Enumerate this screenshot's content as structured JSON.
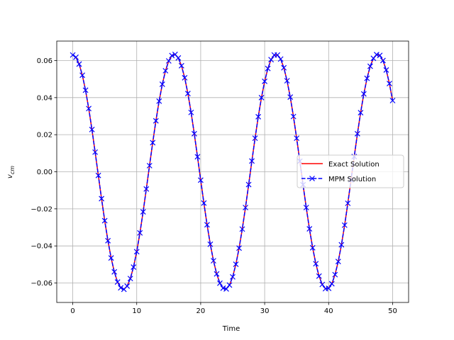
{
  "chart_data": {
    "type": "line",
    "title": "",
    "xlabel": "Time",
    "ylabel_main": "v",
    "ylabel_sub": "cm",
    "xlim": [
      -2.5,
      52.5
    ],
    "ylim": [
      -0.0705,
      0.0705
    ],
    "x_ticks": [
      0,
      10,
      20,
      30,
      40,
      50
    ],
    "x_tick_labels": [
      "0",
      "10",
      "20",
      "30",
      "40",
      "50"
    ],
    "y_ticks": [
      -0.06,
      -0.04,
      -0.02,
      0.0,
      0.02,
      0.04,
      0.06
    ],
    "y_tick_labels": [
      "−0.06",
      "−0.04",
      "−0.02",
      "0.00",
      "0.02",
      "0.04",
      "0.06"
    ],
    "grid": true,
    "legend_position": "center-right",
    "series": [
      {
        "name": "Exact Solution",
        "style": "solid",
        "marker": "none",
        "color": "#ff0000",
        "x": [
          0,
          0.5,
          1.0,
          1.5,
          2.0,
          2.5,
          3.0,
          3.5,
          4.0,
          4.5,
          5.0,
          5.5,
          6.0,
          6.5,
          7.0,
          7.5,
          8.0,
          8.5,
          9.0,
          9.5,
          10.0,
          10.5,
          11.0,
          11.5,
          12.0,
          12.5,
          13.0,
          13.5,
          14.0,
          14.5,
          15.0,
          15.5,
          16.0,
          16.5,
          17.0,
          17.5,
          18.0,
          18.5,
          19.0,
          19.5,
          20.0,
          20.5,
          21.0,
          21.5,
          22.0,
          22.5,
          23.0,
          23.5,
          24.0,
          24.5,
          25.0,
          25.5,
          26.0,
          26.5,
          27.0,
          27.5,
          28.0,
          28.5,
          29.0,
          29.5,
          30.0,
          30.5,
          31.0,
          31.5,
          32.0,
          32.5,
          33.0,
          33.5,
          34.0,
          34.5,
          35.0,
          35.5,
          36.0,
          36.5,
          37.0,
          37.5,
          38.0,
          38.5,
          39.0,
          39.5,
          40.0,
          40.5,
          41.0,
          41.5,
          42.0,
          42.5,
          43.0,
          43.5,
          44.0,
          44.5,
          45.0,
          45.5,
          46.0,
          46.5,
          47.0,
          47.5,
          48.0,
          48.5,
          49.0,
          49.5,
          50.0
        ],
        "y": [
          0.063,
          0.0618,
          0.0581,
          0.0521,
          0.044,
          0.0341,
          0.0228,
          0.0106,
          -0.002,
          -0.0145,
          -0.0264,
          -0.0372,
          -0.0465,
          -0.054,
          -0.0595,
          -0.0626,
          -0.0634,
          -0.0617,
          -0.0576,
          -0.0514,
          -0.0431,
          -0.033,
          -0.0216,
          -0.0093,
          0.0033,
          0.0157,
          0.0275,
          0.0381,
          0.0472,
          0.0545,
          0.0598,
          0.0627,
          0.0633,
          0.0614,
          0.0572,
          0.0507,
          0.0422,
          0.032,
          0.0205,
          0.0081,
          -0.0045,
          -0.0169,
          -0.0286,
          -0.0391,
          -0.048,
          -0.0551,
          -0.0601,
          -0.0628,
          -0.0632,
          -0.0611,
          -0.0567,
          -0.0499,
          -0.0412,
          -0.0309,
          -0.0193,
          -0.0069,
          0.0058,
          0.0181,
          0.0297,
          0.04,
          0.0488,
          0.0557,
          0.0605,
          0.063,
          0.063,
          0.0608,
          0.0561,
          0.0491,
          0.0403,
          0.0298,
          0.0181,
          0.0057,
          -0.007,
          -0.0193,
          -0.0308,
          -0.041,
          -0.0496,
          -0.0563,
          -0.0608,
          -0.0631,
          -0.0629,
          -0.0604,
          -0.0555,
          -0.0484,
          -0.0394,
          -0.0288,
          -0.017,
          -0.0044,
          0.0082,
          0.0205,
          0.0319,
          0.042,
          0.0504,
          0.0569,
          0.0612,
          0.0632,
          0.0628,
          0.06,
          0.0549,
          0.0476,
          0.0384
        ]
      },
      {
        "name": "MPM Solution",
        "style": "dashed",
        "marker": "x",
        "color": "#0000ff",
        "x": [
          0,
          0.5,
          1.0,
          1.5,
          2.0,
          2.5,
          3.0,
          3.5,
          4.0,
          4.5,
          5.0,
          5.5,
          6.0,
          6.5,
          7.0,
          7.5,
          8.0,
          8.5,
          9.0,
          9.5,
          10.0,
          10.5,
          11.0,
          11.5,
          12.0,
          12.5,
          13.0,
          13.5,
          14.0,
          14.5,
          15.0,
          15.5,
          16.0,
          16.5,
          17.0,
          17.5,
          18.0,
          18.5,
          19.0,
          19.5,
          20.0,
          20.5,
          21.0,
          21.5,
          22.0,
          22.5,
          23.0,
          23.5,
          24.0,
          24.5,
          25.0,
          25.5,
          26.0,
          26.5,
          27.0,
          27.5,
          28.0,
          28.5,
          29.0,
          29.5,
          30.0,
          30.5,
          31.0,
          31.5,
          32.0,
          32.5,
          33.0,
          33.5,
          34.0,
          34.5,
          35.0,
          35.5,
          36.0,
          36.5,
          37.0,
          37.5,
          38.0,
          38.5,
          39.0,
          39.5,
          40.0,
          40.5,
          41.0,
          41.5,
          42.0,
          42.5,
          43.0,
          43.5,
          44.0,
          44.5,
          45.0,
          45.5,
          46.0,
          46.5,
          47.0,
          47.5,
          48.0,
          48.5,
          49.0,
          49.5,
          50.0
        ],
        "y": [
          0.063,
          0.0618,
          0.0581,
          0.0521,
          0.044,
          0.0341,
          0.0228,
          0.0106,
          -0.002,
          -0.0145,
          -0.0264,
          -0.0372,
          -0.0465,
          -0.054,
          -0.0595,
          -0.0626,
          -0.0634,
          -0.0617,
          -0.0576,
          -0.0514,
          -0.0431,
          -0.033,
          -0.0216,
          -0.0093,
          0.0033,
          0.0157,
          0.0275,
          0.0381,
          0.0472,
          0.0545,
          0.0598,
          0.0627,
          0.0633,
          0.0614,
          0.0572,
          0.0507,
          0.0422,
          0.032,
          0.0205,
          0.0081,
          -0.0045,
          -0.0169,
          -0.0286,
          -0.0391,
          -0.048,
          -0.0551,
          -0.0601,
          -0.0628,
          -0.0632,
          -0.0611,
          -0.0567,
          -0.0499,
          -0.0412,
          -0.0309,
          -0.0193,
          -0.0069,
          0.0058,
          0.0181,
          0.0297,
          0.04,
          0.0488,
          0.0557,
          0.0605,
          0.063,
          0.063,
          0.0608,
          0.0561,
          0.0491,
          0.0403,
          0.0298,
          0.0181,
          0.0057,
          -0.007,
          -0.0193,
          -0.0308,
          -0.041,
          -0.0496,
          -0.0563,
          -0.0608,
          -0.0631,
          -0.0629,
          -0.0604,
          -0.0555,
          -0.0484,
          -0.0394,
          -0.0288,
          -0.017,
          -0.0044,
          0.0082,
          0.0205,
          0.0319,
          0.042,
          0.0504,
          0.0569,
          0.0612,
          0.0632,
          0.0628,
          0.06,
          0.0549,
          0.0476,
          0.0384
        ]
      }
    ]
  }
}
